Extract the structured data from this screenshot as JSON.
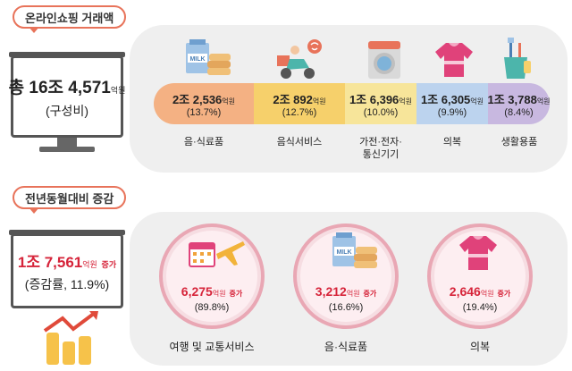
{
  "section1": {
    "tag": "온라인쇼핑 거래액",
    "total_main": "총 16조 4,571",
    "total_unit": "억원",
    "total_sub": "(구성비)",
    "categories": [
      {
        "value": "2조 2,536",
        "unit": "억원",
        "pct": "(13.7%)",
        "label": "음·식료품",
        "icon": "milk-and-food-icon",
        "color": "#f4b183"
      },
      {
        "value": "2조 892",
        "unit": "억원",
        "pct": "(12.7%)",
        "label": "음식서비스",
        "icon": "delivery-scooter-icon",
        "color": "#f6d06b"
      },
      {
        "value": "1조 6,396",
        "unit": "억원",
        "pct": "(10.0%)",
        "label": "가전·전자·\n통신기기",
        "icon": "washing-machine-icon",
        "color": "#f7e59a"
      },
      {
        "value": "1조 6,305",
        "unit": "억원",
        "pct": "(9.9%)",
        "label": "의복",
        "icon": "tshirt-icon",
        "color": "#bcd3ee"
      },
      {
        "value": "1조 3,788",
        "unit": "억원",
        "pct": "(8.4%)",
        "label": "생활용품",
        "icon": "toothbrush-cup-icon",
        "color": "#c8b8e0"
      }
    ]
  },
  "section2": {
    "tag": "전년동월대비 증감",
    "total_main": "1조 7,561",
    "total_unit": "억원",
    "total_inc": "증가",
    "total_sub": "(증감률, 11.9%)",
    "items": [
      {
        "value": "6,275",
        "unit": "억원",
        "inc": "증가",
        "pct": "(89.8%)",
        "label": "여행 및 교통서비스",
        "icon": "calendar-airplane-icon"
      },
      {
        "value": "3,212",
        "unit": "억원",
        "inc": "증가",
        "pct": "(16.6%)",
        "label": "음·식료품",
        "icon": "milk-and-food-icon"
      },
      {
        "value": "2,646",
        "unit": "억원",
        "inc": "증가",
        "pct": "(19.4%)",
        "label": "의복",
        "icon": "tshirt-icon"
      }
    ]
  },
  "colors": {
    "accent": "#d6243a",
    "tag_border": "#e8735a",
    "panel": "#efefef",
    "circle_ring": "#e9a7b4"
  }
}
